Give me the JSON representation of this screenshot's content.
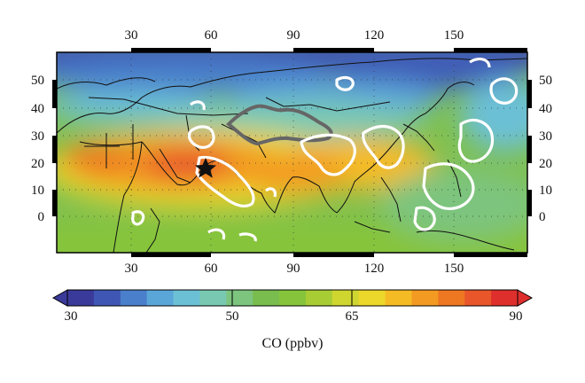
{
  "map": {
    "type": "filled-contour-map",
    "lon_ticks": [
      30,
      60,
      90,
      120,
      150
    ],
    "lat_ticks": [
      0,
      10,
      20,
      30,
      40,
      50
    ],
    "lon_range": [
      8,
      178
    ],
    "lat_range": [
      -13,
      62
    ],
    "overlays": [
      "white contour lines",
      "gray contour (Tibetan Plateau)",
      "coastlines and country borders",
      "dotted grid"
    ],
    "marker": {
      "type": "star-icon",
      "lon": 57,
      "lat": 17.5
    }
  },
  "colorbar": {
    "title": "CO (ppbv)",
    "min": 30,
    "max": 90,
    "tick_labels": [
      "30",
      "50",
      "65",
      "90"
    ],
    "tick_values": [
      30,
      50,
      65,
      90
    ],
    "colors": [
      "#3a3a9a",
      "#3f56b4",
      "#4a7fcb",
      "#5ba6d9",
      "#6cc0d6",
      "#79c9b2",
      "#7dc47e",
      "#79bd4e",
      "#86c43b",
      "#a8cd34",
      "#cfd630",
      "#ecd72b",
      "#f5bb25",
      "#f39a22",
      "#ee7722",
      "#e8562a",
      "#df2f2c"
    ],
    "extend": "both"
  }
}
